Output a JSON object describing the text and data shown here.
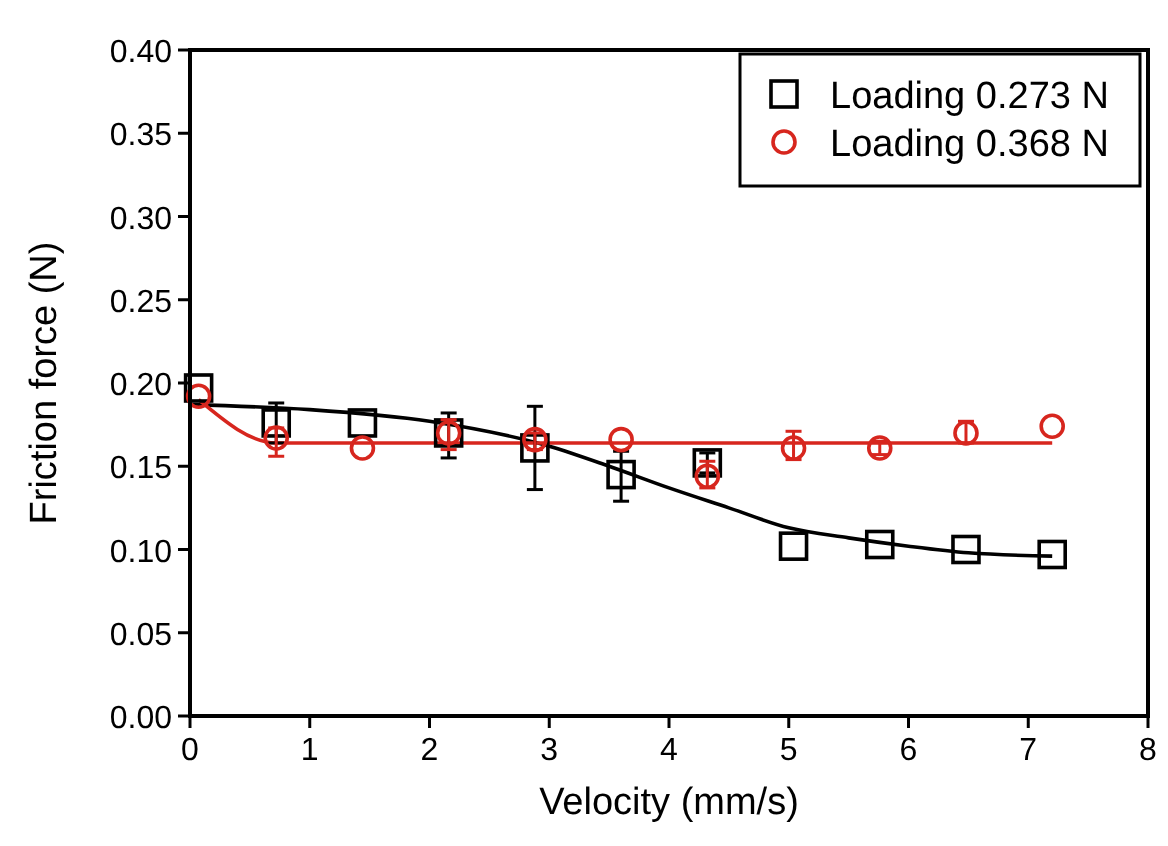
{
  "chart_data": {
    "type": "scatter",
    "xlabel": "Velocity (mm/s)",
    "ylabel": "Friction force (N)",
    "xlim": [
      0,
      8
    ],
    "ylim": [
      0,
      0.4
    ],
    "xticks": [
      0,
      1,
      2,
      3,
      4,
      5,
      6,
      7,
      8
    ],
    "yticks": [
      {
        "value": 0,
        "label": "0.00"
      },
      {
        "value": 0.05,
        "label": "0.05"
      },
      {
        "value": 0.1,
        "label": "0.10"
      },
      {
        "value": 0.15,
        "label": "0.15"
      },
      {
        "value": 0.2,
        "label": "0.20"
      },
      {
        "value": 0.25,
        "label": "0.25"
      },
      {
        "value": 0.3,
        "label": "0.30"
      },
      {
        "value": 0.35,
        "label": "0.35"
      },
      {
        "value": 0.4,
        "label": "0.40"
      }
    ],
    "grid": false,
    "legend": "top right",
    "series": [
      {
        "name": "Loading 0.273 N",
        "color": "#000000",
        "marker": "square",
        "x": [
          0.072,
          0.72,
          1.44,
          2.16,
          2.88,
          3.6,
          4.32,
          5.04,
          5.76,
          6.48,
          7.2
        ],
        "values": [
          0.197,
          0.176,
          0.176,
          0.17,
          0.161,
          0.145,
          0.152,
          0.102,
          0.103,
          0.1,
          0.097
        ],
        "errors": [
          null,
          0.012,
          null,
          [
            0.155,
            0.182
          ],
          [
            0.136,
            0.186
          ],
          [
            0.129,
            0.159
          ],
          [
            0.146,
            0.158
          ],
          null,
          null,
          null,
          null
        ]
      },
      {
        "name": "Loading 0.368 N",
        "color": "#d7261e",
        "marker": "circle",
        "x": [
          0.072,
          0.72,
          1.44,
          2.16,
          2.88,
          3.6,
          4.32,
          5.04,
          5.76,
          6.48,
          7.2
        ],
        "values": [
          0.192,
          0.167,
          0.161,
          0.17,
          0.166,
          0.166,
          0.144,
          0.161,
          0.161,
          0.17,
          0.174
        ],
        "errors": [
          null,
          [
            0.156,
            0.173
          ],
          null,
          [
            0.16,
            0.178
          ],
          [
            0.16,
            0.17
          ],
          null,
          [
            0.137,
            0.153
          ],
          [
            0.154,
            0.171
          ],
          [
            0.157,
            0.165
          ],
          [
            0.164,
            0.177
          ],
          null
        ]
      },
      {
        "type": "line",
        "color": "#000000",
        "marker": "none",
        "x": [
          0,
          1,
          2,
          3,
          3.5,
          4,
          4.5,
          5,
          5.5,
          6,
          6.5,
          7.2
        ],
        "values": [
          0.187,
          0.184,
          0.177,
          0.162,
          0.15,
          0.137,
          0.125,
          0.113,
          0.107,
          0.102,
          0.098,
          0.096
        ]
      },
      {
        "type": "line",
        "color": "#d7261e",
        "marker": "none",
        "x": [
          0.072,
          0.72,
          7.2
        ],
        "values": [
          0.19,
          0.164,
          0.164
        ]
      }
    ]
  }
}
